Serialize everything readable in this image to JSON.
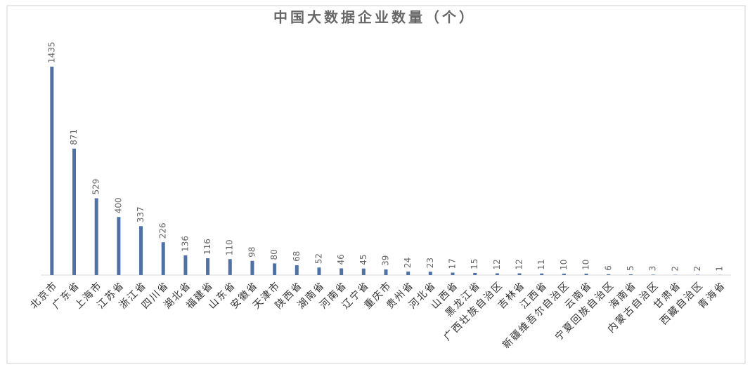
{
  "chart_data": {
    "type": "bar",
    "title": "中国大数据企业数量（个）",
    "categories": [
      "北京市",
      "广东省",
      "上海市",
      "江苏省",
      "浙江省",
      "四川省",
      "湖北省",
      "福建省",
      "山东省",
      "安徽省",
      "天津市",
      "陕西省",
      "湖南省",
      "河南省",
      "辽宁省",
      "重庆市",
      "贵州省",
      "河北省",
      "山西省",
      "黑龙江省",
      "广西壮族自治区",
      "吉林省",
      "江西省",
      "新疆维吾尔自治区",
      "云南省",
      "宁夏回族自治区",
      "海南省",
      "内蒙古自治区",
      "甘肃省",
      "西藏自治区",
      "青海省"
    ],
    "values": [
      1435,
      871,
      529,
      400,
      337,
      226,
      136,
      116,
      110,
      98,
      80,
      68,
      52,
      46,
      45,
      39,
      24,
      23,
      17,
      15,
      12,
      12,
      11,
      10,
      10,
      6,
      5,
      3,
      2,
      2,
      1
    ],
    "color": "#4e72a8"
  }
}
